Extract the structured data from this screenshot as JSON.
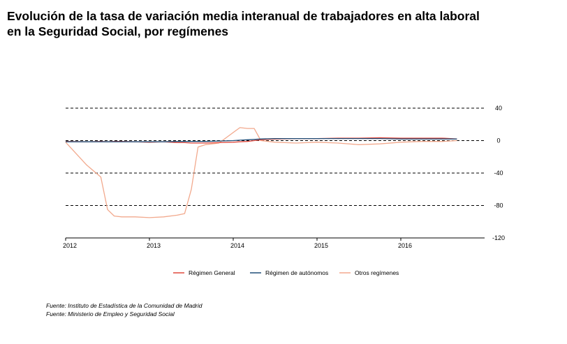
{
  "title_lines": [
    "Evolución de la tasa de variación media interanual de trabajadores en alta laboral",
    "en la Seguridad Social, por  regímenes"
  ],
  "chart_data": {
    "type": "line",
    "title": "Evolución de la tasa de variación media interanual de trabajadores en alta laboral en la Seguridad Social, por  regímenes",
    "xlabel": "",
    "ylabel": "",
    "x_tick_labels": [
      "2012",
      "2013",
      "2014",
      "2015",
      "2016"
    ],
    "xlim": [
      2012,
      2017
    ],
    "ylim": [
      -120,
      40
    ],
    "y_ticks": [
      40,
      0,
      -40,
      -80,
      -120
    ],
    "y_axis_side": "right",
    "grid": "horizontal dashed",
    "legend_position": "bottom",
    "x": [
      2012.0,
      2012.25,
      2012.42,
      2012.5,
      2012.58,
      2012.67,
      2012.83,
      2013.0,
      2013.17,
      2013.33,
      2013.42,
      2013.5,
      2013.58,
      2013.67,
      2013.83,
      2014.0,
      2014.08,
      2014.17,
      2014.25,
      2014.33,
      2014.5,
      2014.75,
      2015.0,
      2015.25,
      2015.5,
      2015.75,
      2016.0,
      2016.25,
      2016.5,
      2016.67
    ],
    "series": [
      {
        "name": "Régimen General",
        "color": "#e0483c",
        "values": [
          -1,
          -1.5,
          -1,
          -1.5,
          -1,
          -1,
          -1.5,
          -2,
          -1.5,
          -2.5,
          -2.5,
          -3,
          -3,
          -3,
          -2.5,
          -2,
          -1.5,
          -1,
          0,
          1,
          2,
          2.5,
          2.5,
          3,
          3,
          3.5,
          3,
          3,
          3,
          2
        ]
      },
      {
        "name": "Régimen de autónomos",
        "color": "#1f4e79",
        "values": [
          -1.5,
          -1.5,
          -1.5,
          -1.5,
          -1.5,
          -1.5,
          -1.5,
          -1.5,
          -1.5,
          -1,
          -1,
          -1,
          -1,
          -1,
          -0.5,
          0,
          0.5,
          1,
          1.5,
          2,
          2.5,
          2.5,
          2.5,
          2.5,
          2.5,
          2.5,
          2,
          2,
          2,
          2
        ]
      },
      {
        "name": "Otros regímenes",
        "color": "#f2a98d",
        "values": [
          -2,
          -30,
          -45,
          -85,
          -93,
          -94,
          -94,
          -95,
          -94,
          -92,
          -90,
          -60,
          -8,
          -5,
          -3,
          10,
          16,
          15,
          15,
          0,
          -2,
          -3,
          -2,
          -3,
          -5,
          -4,
          -2,
          -1,
          -1,
          0
        ]
      }
    ]
  },
  "sources": [
    "Fuente: Instituto de Estadística de la Comunidad de Madrid",
    "Fuente: Ministerio de Empleo y Seguridad Social"
  ]
}
